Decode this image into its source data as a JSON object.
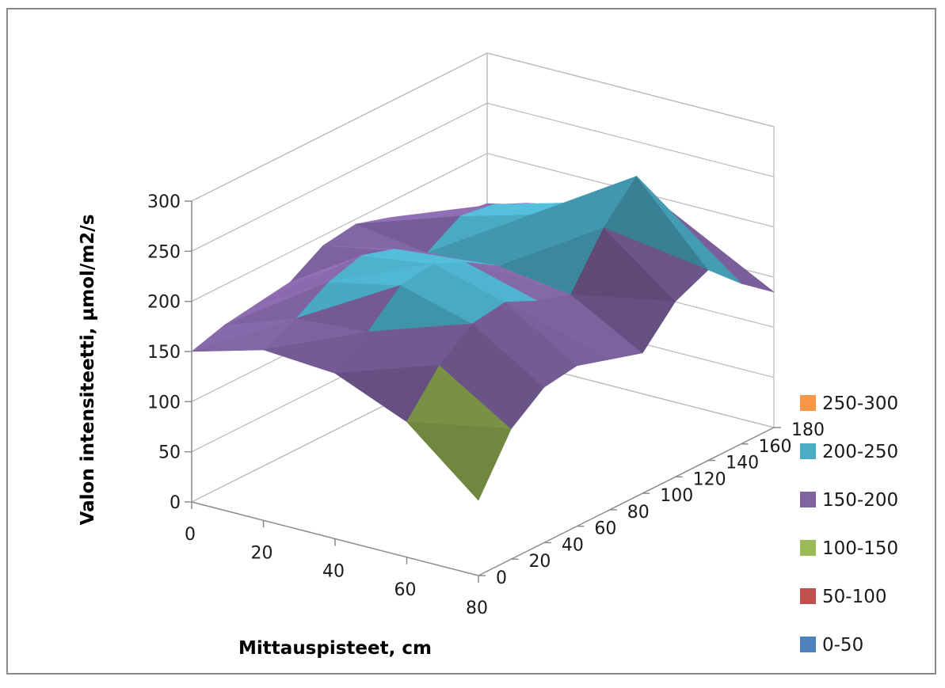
{
  "chart_data": {
    "type": "surface",
    "x_title": "Mittauspisteet, cm",
    "z_title": "Valon intensiteetti, µmol/m2/s",
    "x_ticks": [
      0,
      20,
      40,
      60,
      80
    ],
    "y_ticks": [
      0,
      20,
      40,
      60,
      80,
      100,
      120,
      140,
      160,
      180
    ],
    "z_ticks": [
      0,
      50,
      100,
      150,
      200,
      250,
      300
    ],
    "x_range": [
      0,
      80
    ],
    "y_range": [
      0,
      180
    ],
    "z_range": [
      0,
      300
    ],
    "legend_position": "right",
    "bands": [
      {
        "label": "250-300",
        "min": 250,
        "max": 300,
        "color": "#F79646"
      },
      {
        "label": "200-250",
        "min": 200,
        "max": 250,
        "color": "#4BACC6"
      },
      {
        "label": "150-200",
        "min": 150,
        "max": 200,
        "color": "#8064A2"
      },
      {
        "label": "100-150",
        "min": 100,
        "max": 150,
        "color": "#9BBB59"
      },
      {
        "label": "50-100",
        "min": 50,
        "max": 100,
        "color": "#C0504D"
      },
      {
        "label": "0-50",
        "min": 0,
        "max": 50,
        "color": "#4F81BD"
      }
    ],
    "grid_x": [
      0,
      20,
      40,
      60,
      80
    ],
    "grid_y": [
      0,
      20,
      40,
      60,
      80,
      100,
      120,
      140,
      160,
      180
    ],
    "values": [
      [
        150,
        160,
        165,
        170,
        190,
        195,
        185,
        170,
        155,
        150
      ],
      [
        170,
        185,
        205,
        215,
        205,
        185,
        205,
        200,
        185,
        165
      ],
      [
        165,
        190,
        220,
        225,
        210,
        190,
        225,
        220,
        200,
        160
      ],
      [
        135,
        175,
        200,
        205,
        190,
        180,
        230,
        265,
        215,
        155
      ],
      [
        75,
        130,
        155,
        160,
        150,
        140,
        175,
        190,
        160,
        135
      ]
    ]
  }
}
